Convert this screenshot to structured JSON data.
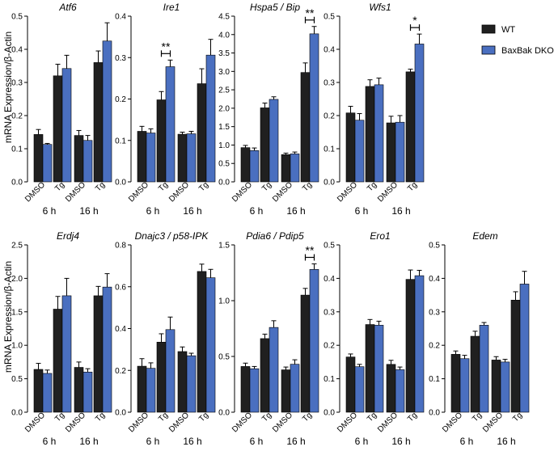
{
  "figure": {
    "ylabel": "mRNA Expression/β-Actin",
    "legend": {
      "position": "top-right",
      "entries": [
        {
          "name": "WT",
          "color": "#202020"
        },
        {
          "name": "BaxBak DKO",
          "color": "#4a6fc0"
        }
      ]
    },
    "categories": [
      "DMSO",
      "Tg",
      "DMSO",
      "Tg"
    ],
    "groups": [
      "6 h",
      "16 h"
    ]
  },
  "chart_data": [
    {
      "type": "bar",
      "title": "Atf6",
      "categories": [
        "DMSO 6 h",
        "Tg 6 h",
        "DMSO 16 h",
        "Tg 16 h"
      ],
      "ylim": [
        0,
        0.5
      ],
      "ticks": [
        0.0,
        0.1,
        0.2,
        0.3,
        0.4,
        0.5
      ],
      "tick_labels": [
        "0.0",
        "0.1",
        "0.2",
        "0.3",
        "0.4",
        "0.5"
      ],
      "series": [
        {
          "name": "WT",
          "values": [
            0.143,
            0.32,
            0.14,
            0.36
          ],
          "errors": [
            0.015,
            0.035,
            0.015,
            0.035
          ]
        },
        {
          "name": "BaxBak DKO",
          "values": [
            0.113,
            0.342,
            0.125,
            0.425
          ],
          "errors": [
            0.003,
            0.04,
            0.015,
            0.055
          ]
        }
      ],
      "significance": []
    },
    {
      "type": "bar",
      "title": "Ire1",
      "categories": [
        "DMSO 6 h",
        "Tg 6 h",
        "DMSO 16 h",
        "Tg 16 h"
      ],
      "ylim": [
        0,
        0.4
      ],
      "ticks": [
        0.0,
        0.1,
        0.2,
        0.3,
        0.4
      ],
      "tick_labels": [
        "0.0",
        "0.1",
        "0.2",
        "0.3",
        "0.4"
      ],
      "series": [
        {
          "name": "WT",
          "values": [
            0.122,
            0.198,
            0.115,
            0.237
          ],
          "errors": [
            0.012,
            0.02,
            0.005,
            0.036
          ]
        },
        {
          "name": "BaxBak DKO",
          "values": [
            0.118,
            0.278,
            0.116,
            0.306
          ],
          "errors": [
            0.01,
            0.016,
            0.006,
            0.038
          ]
        }
      ],
      "significance": [
        {
          "index": 1,
          "label": "**"
        }
      ]
    },
    {
      "type": "bar",
      "title": "Hspa5 / Bip",
      "categories": [
        "DMSO 6 h",
        "Tg 6 h",
        "DMSO 16 h",
        "Tg 16 h"
      ],
      "ylim": [
        0,
        4.5
      ],
      "ticks": [
        0.0,
        0.5,
        1.0,
        1.5,
        2.0,
        2.5,
        3.0,
        3.5,
        4.0,
        4.5
      ],
      "tick_labels": [
        "0.0",
        "0.5",
        "1.0",
        "1.5",
        "2.0",
        "2.5",
        "3.0",
        "3.5",
        "4.0",
        "4.5"
      ],
      "series": [
        {
          "name": "WT",
          "values": [
            0.93,
            2.01,
            0.74,
            2.97
          ],
          "errors": [
            0.06,
            0.13,
            0.04,
            0.26
          ]
        },
        {
          "name": "BaxBak DKO",
          "values": [
            0.85,
            2.24,
            0.76,
            4.02
          ],
          "errors": [
            0.07,
            0.07,
            0.05,
            0.2
          ]
        }
      ],
      "significance": [
        {
          "index": 3,
          "label": "**"
        }
      ]
    },
    {
      "type": "bar",
      "title": "Wfs1",
      "categories": [
        "DMSO 6 h",
        "Tg 6 h",
        "DMSO 16 h",
        "Tg 16 h"
      ],
      "ylim": [
        0,
        0.5
      ],
      "ticks": [
        0.0,
        0.1,
        0.2,
        0.3,
        0.4,
        0.5
      ],
      "tick_labels": [
        "0.0",
        "0.1",
        "0.2",
        "0.3",
        "0.4",
        "0.5"
      ],
      "series": [
        {
          "name": "WT",
          "values": [
            0.208,
            0.288,
            0.178,
            0.332
          ],
          "errors": [
            0.02,
            0.02,
            0.02,
            0.008
          ]
        },
        {
          "name": "BaxBak DKO",
          "values": [
            0.186,
            0.293,
            0.18,
            0.416
          ],
          "errors": [
            0.02,
            0.02,
            0.02,
            0.03
          ]
        }
      ],
      "significance": [
        {
          "index": 3,
          "label": "*"
        }
      ]
    },
    {
      "type": "bar",
      "title": "Erdj4",
      "categories": [
        "DMSO 6 h",
        "Tg 6 h",
        "DMSO 16 h",
        "Tg 16 h"
      ],
      "ylim": [
        0,
        2.5
      ],
      "ticks": [
        0.0,
        0.5,
        1.0,
        1.5,
        2.0,
        2.5
      ],
      "tick_labels": [
        "0.0",
        "0.5",
        "1.0",
        "1.5",
        "2.0",
        "2.5"
      ],
      "series": [
        {
          "name": "WT",
          "values": [
            0.64,
            1.54,
            0.67,
            1.74
          ],
          "errors": [
            0.09,
            0.19,
            0.08,
            0.14
          ]
        },
        {
          "name": "BaxBak DKO",
          "values": [
            0.58,
            1.74,
            0.6,
            1.87
          ],
          "errors": [
            0.05,
            0.26,
            0.05,
            0.2
          ]
        }
      ],
      "significance": []
    },
    {
      "type": "bar",
      "title": "Dnajc3 / p58-IPK",
      "categories": [
        "DMSO 6 h",
        "Tg 6 h",
        "DMSO 16 h",
        "Tg 16 h"
      ],
      "ylim": [
        0,
        0.8
      ],
      "ticks": [
        0.0,
        0.2,
        0.4,
        0.6,
        0.8
      ],
      "tick_labels": [
        "0.0",
        "0.2",
        "0.4",
        "0.6",
        "0.8"
      ],
      "series": [
        {
          "name": "WT",
          "values": [
            0.22,
            0.335,
            0.29,
            0.673
          ],
          "errors": [
            0.036,
            0.04,
            0.022,
            0.035
          ]
        },
        {
          "name": "BaxBak DKO",
          "values": [
            0.21,
            0.395,
            0.27,
            0.643
          ],
          "errors": [
            0.026,
            0.06,
            0.012,
            0.04
          ]
        }
      ],
      "significance": []
    },
    {
      "type": "bar",
      "title": "Pdia6 / Pdip5",
      "categories": [
        "DMSO 6 h",
        "Tg 6 h",
        "DMSO 16 h",
        "Tg 16 h"
      ],
      "ylim": [
        0,
        1.5
      ],
      "ticks": [
        0.0,
        0.5,
        1.0,
        1.5
      ],
      "tick_labels": [
        "0.0",
        "0.5",
        "1.0",
        "1.5"
      ],
      "series": [
        {
          "name": "WT",
          "values": [
            0.41,
            0.66,
            0.38,
            1.05
          ],
          "errors": [
            0.03,
            0.04,
            0.025,
            0.06
          ]
        },
        {
          "name": "BaxBak DKO",
          "values": [
            0.39,
            0.76,
            0.43,
            1.28
          ],
          "errors": [
            0.02,
            0.06,
            0.04,
            0.05
          ]
        }
      ],
      "significance": [
        {
          "index": 3,
          "label": "**"
        }
      ]
    },
    {
      "type": "bar",
      "title": "Ero1",
      "categories": [
        "DMSO 6 h",
        "Tg 6 h",
        "DMSO 16 h",
        "Tg 16 h"
      ],
      "ylim": [
        0,
        0.5
      ],
      "ticks": [
        0.0,
        0.1,
        0.2,
        0.3,
        0.4,
        0.5
      ],
      "tick_labels": [
        "0.0",
        "0.1",
        "0.2",
        "0.3",
        "0.4",
        "0.5"
      ],
      "series": [
        {
          "name": "WT",
          "values": [
            0.165,
            0.262,
            0.143,
            0.397
          ],
          "errors": [
            0.009,
            0.015,
            0.012,
            0.028
          ]
        },
        {
          "name": "BaxBak DKO",
          "values": [
            0.136,
            0.26,
            0.127,
            0.408
          ],
          "errors": [
            0.007,
            0.012,
            0.008,
            0.016
          ]
        }
      ],
      "significance": []
    },
    {
      "type": "bar",
      "title": "Edem",
      "categories": [
        "DMSO 6 h",
        "Tg 6 h",
        "DMSO 16 h",
        "Tg 16 h"
      ],
      "ylim": [
        0,
        0.5
      ],
      "ticks": [
        0.0,
        0.1,
        0.2,
        0.3,
        0.4,
        0.5
      ],
      "tick_labels": [
        "0.0",
        "0.1",
        "0.2",
        "0.3",
        "0.4",
        "0.5"
      ],
      "series": [
        {
          "name": "WT",
          "values": [
            0.173,
            0.227,
            0.156,
            0.335
          ],
          "errors": [
            0.01,
            0.015,
            0.01,
            0.025
          ]
        },
        {
          "name": "BaxBak DKO",
          "values": [
            0.16,
            0.26,
            0.15,
            0.383
          ],
          "errors": [
            0.01,
            0.008,
            0.008,
            0.038
          ]
        }
      ],
      "significance": []
    }
  ]
}
